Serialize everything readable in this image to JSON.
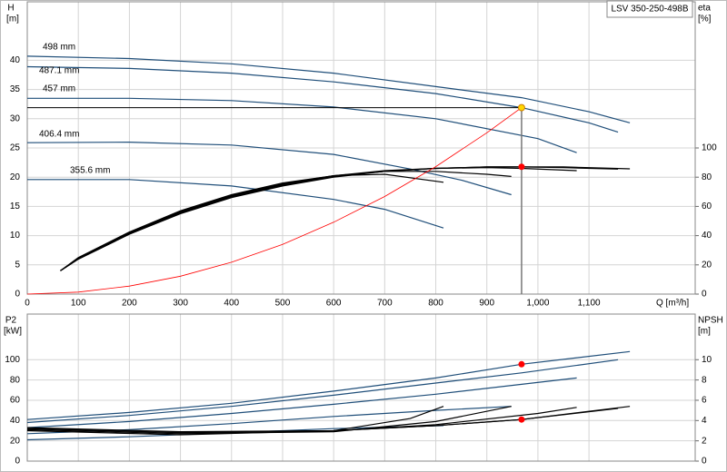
{
  "chart_data": [
    {
      "type": "pump-curve",
      "title": "LSV 350-250-498B",
      "x_label": "Q [m³/h]",
      "y_label": "H",
      "y_unit": "[m]",
      "y2_label": "eta",
      "y2_unit": "[%]",
      "xlim": [
        0,
        1308
      ],
      "xticks": [
        0,
        100,
        200,
        300,
        400,
        500,
        600,
        700,
        800,
        900,
        {
          "value": 1000,
          "label": "1,000"
        },
        {
          "value": 1100,
          "label": "1,100"
        }
      ],
      "ylim": [
        0,
        50
      ],
      "yticks": [
        0,
        5,
        10,
        15,
        20,
        25,
        30,
        35,
        40
      ],
      "y2lim": [
        0,
        200
      ],
      "y2ticks": [
        0,
        20,
        40,
        60,
        80,
        100
      ],
      "grid": true,
      "series": [
        {
          "name": "498 mm",
          "color": "#1f4e79",
          "x": [
            0,
            200,
            400,
            600,
            800,
            968,
            1100,
            1180
          ],
          "values": [
            40.7,
            40.3,
            39.4,
            37.8,
            35.5,
            33.6,
            31.2,
            29.3
          ]
        },
        {
          "name": "487.1 mm",
          "color": "#1f4e79",
          "x": [
            0,
            200,
            400,
            600,
            800,
            968,
            1100,
            1157
          ],
          "values": [
            38.9,
            38.6,
            37.8,
            36.3,
            34.3,
            31.9,
            29.3,
            27.7
          ]
        },
        {
          "name": "457 mm",
          "color": "#1f4e79",
          "x": [
            0,
            200,
            400,
            600,
            800,
            1000,
            1076
          ],
          "values": [
            33.5,
            33.5,
            33.1,
            32.0,
            30.0,
            26.6,
            24.2
          ]
        },
        {
          "name": "406.4 mm",
          "color": "#1f4e79",
          "x": [
            0,
            200,
            400,
            600,
            750,
            850,
            948
          ],
          "values": [
            25.9,
            26.0,
            25.5,
            23.9,
            21.4,
            19.5,
            17.0
          ]
        },
        {
          "name": "355.6 mm",
          "color": "#1f4e79",
          "x": [
            0,
            200,
            400,
            600,
            700,
            815
          ],
          "values": [
            19.6,
            19.6,
            18.5,
            16.2,
            14.5,
            11.3
          ]
        },
        {
          "color": "#000000",
          "axis": "y2",
          "x": [
            65,
            100,
            200,
            300,
            400,
            500,
            600,
            700,
            800,
            900,
            968,
            1050,
            1150,
            1180
          ],
          "values": [
            16,
            24,
            41,
            55,
            66,
            74,
            80,
            84,
            86,
            87,
            87.1,
            87,
            86,
            85.7
          ]
        },
        {
          "color": "#000000",
          "axis": "y2",
          "x": [
            65,
            100,
            200,
            300,
            400,
            500,
            600,
            700,
            800,
            900,
            968,
            1050,
            1157
          ],
          "values": [
            16,
            24,
            41,
            55.5,
            66.5,
            74.5,
            80.5,
            84,
            86,
            87,
            87,
            86.5,
            85.5
          ]
        },
        {
          "color": "#000000",
          "axis": "y2",
          "x": [
            65,
            100,
            200,
            300,
            400,
            500,
            600,
            700,
            800,
            900,
            968,
            1076
          ],
          "values": [
            16,
            24,
            41.5,
            56,
            67,
            75,
            81,
            84.5,
            86,
            86.5,
            86,
            84.5
          ]
        },
        {
          "color": "#000000",
          "axis": "y2",
          "x": [
            65,
            100,
            200,
            300,
            400,
            500,
            600,
            700,
            800,
            900,
            948
          ],
          "values": [
            16,
            24.5,
            42,
            56.5,
            67.5,
            75.5,
            81,
            84,
            84,
            82,
            80.5
          ]
        },
        {
          "color": "#000000",
          "axis": "y2",
          "x": [
            65,
            100,
            200,
            300,
            400,
            500,
            600,
            700,
            815
          ],
          "values": [
            16,
            25,
            42.5,
            57,
            68,
            76,
            81,
            82,
            76.5
          ]
        },
        {
          "color": "#ff0000",
          "x": [
            0,
            100,
            200,
            300,
            400,
            500,
            600,
            700,
            800,
            900,
            968
          ],
          "values": [
            0,
            0.34,
            1.36,
            3.06,
            5.45,
            8.51,
            12.3,
            16.7,
            21.8,
            27.6,
            31.9
          ]
        }
      ],
      "duty_point": {
        "x": 968,
        "y": 31.9,
        "y2": 87.1
      }
    },
    {
      "type": "pump-curve",
      "y_label": "P2",
      "y_unit": "[kW]",
      "y2_label": "NPSH",
      "y2_unit": "[m]",
      "ylim": [
        0,
        145
      ],
      "yticks": [
        0,
        20,
        40,
        60,
        80,
        100
      ],
      "y2lim": [
        0,
        14.5
      ],
      "y2ticks": [
        0,
        2,
        4,
        6,
        8,
        10
      ],
      "grid": true,
      "series": [
        {
          "color": "#1f4e79",
          "x": [
            0,
            200,
            400,
            600,
            800,
            968,
            1180
          ],
          "values": [
            41,
            48,
            57,
            69,
            82,
            95.5,
            108
          ]
        },
        {
          "color": "#1f4e79",
          "x": [
            0,
            200,
            400,
            600,
            800,
            968,
            1157
          ],
          "values": [
            38,
            45,
            54,
            65,
            77,
            87,
            100
          ]
        },
        {
          "color": "#1f4e79",
          "x": [
            0,
            200,
            400,
            600,
            800,
            1076
          ],
          "values": [
            33,
            39,
            47,
            56,
            66,
            82
          ]
        },
        {
          "color": "#1f4e79",
          "x": [
            0,
            200,
            400,
            600,
            800,
            948
          ],
          "values": [
            27,
            31,
            37,
            44,
            50,
            54
          ]
        },
        {
          "color": "#1f4e79",
          "x": [
            0,
            200,
            400,
            600,
            815
          ],
          "values": [
            21,
            24,
            28,
            32,
            35
          ]
        },
        {
          "color": "#000000",
          "axis": "y2",
          "x": [
            0,
            300,
            600,
            800,
            968,
            1180
          ],
          "values": [
            3.3,
            2.9,
            3.0,
            3.5,
            4.1,
            5.4
          ]
        },
        {
          "color": "#000000",
          "axis": "y2",
          "x": [
            0,
            300,
            600,
            800,
            968,
            1157
          ],
          "values": [
            3.2,
            2.8,
            3.0,
            3.5,
            4.1,
            5.2
          ]
        },
        {
          "color": "#000000",
          "axis": "y2",
          "x": [
            0,
            300,
            600,
            800,
            1000,
            1076
          ],
          "values": [
            3.2,
            2.8,
            3.0,
            3.6,
            4.7,
            5.3
          ]
        },
        {
          "color": "#000000",
          "axis": "y2",
          "x": [
            0,
            300,
            600,
            800,
            948
          ],
          "values": [
            3.1,
            2.7,
            2.9,
            3.9,
            5.4
          ]
        },
        {
          "color": "#000000",
          "axis": "y2",
          "x": [
            0,
            300,
            600,
            750,
            815
          ],
          "values": [
            3.0,
            2.6,
            3.0,
            4.2,
            5.4
          ]
        }
      ],
      "duty_point": {
        "x": 968,
        "y": 95.5,
        "y2": 4.1
      }
    }
  ]
}
